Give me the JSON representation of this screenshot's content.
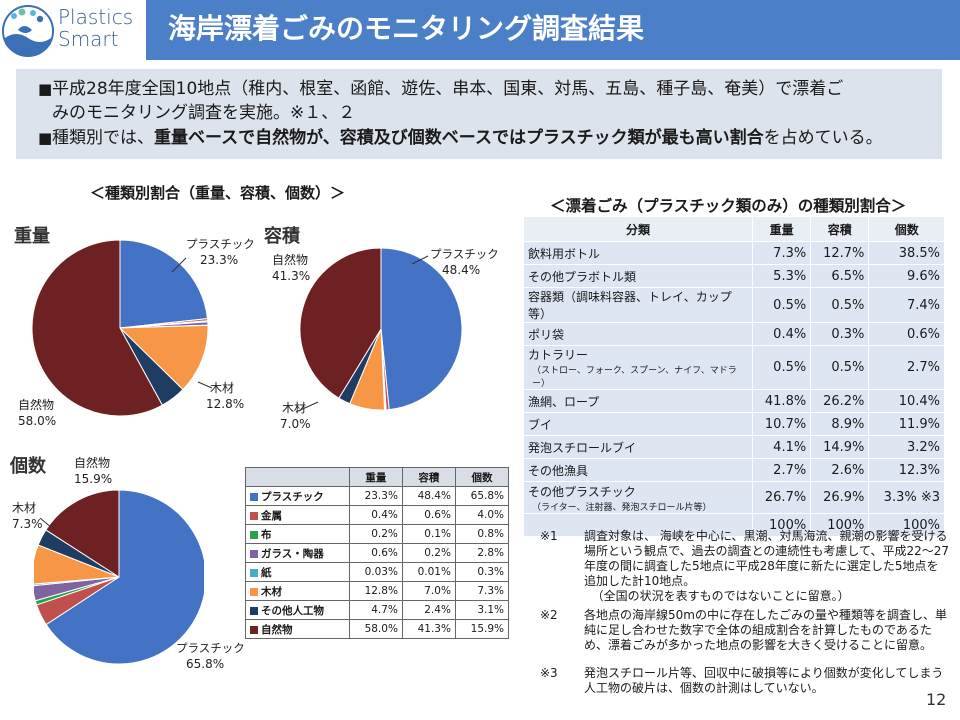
{
  "header": {
    "logo_line1": "Plastics",
    "logo_line2": "Smart",
    "title": "海岸漂着ごみのモニタリング調査結果"
  },
  "summary": {
    "line1": "平成28年度全国10地点（稚内、根室、函館、遊佐、串本、国東、対馬、五島、種子島、奄美）で漂着ご",
    "line1b": "みのモニタリング調査を実施。※１、２",
    "line2_a": "種類別では、",
    "line2_b": "重量ベースで自然物が、容積及び個数ベースではプラスチック類が最も高い割合",
    "line2_c": "を占めている。",
    "bullet": "■"
  },
  "left_section": {
    "heading": "＜種類別割合（重量、容積、個数）＞",
    "weight_label": "重量",
    "volume_label": "容積",
    "count_label": "個数"
  },
  "right_section": {
    "heading": "＜漂着ごみ（プラスチック類のみ）の種類別割合＞"
  },
  "colors": {
    "plastic": "#4472c4",
    "metal": "#c0504d",
    "cloth": "#2aa14d",
    "glass": "#8064a2",
    "paper": "#4bacc6",
    "wood": "#f79646",
    "other_artificial": "#1f3d62",
    "natural": "#6e2122"
  },
  "chart_data": [
    {
      "type": "pie",
      "title": "重量",
      "labels": [
        "プラスチック",
        "金属",
        "布",
        "ガラス・陶器",
        "紙",
        "木材",
        "その他人工物",
        "自然物"
      ],
      "values": [
        23.3,
        0.4,
        0.2,
        0.6,
        0.03,
        12.8,
        4.7,
        58.0
      ],
      "shown_labels": [
        {
          "name": "プラスチック",
          "value": "23.3%"
        },
        {
          "name": "木材",
          "value": "12.8%"
        },
        {
          "name": "自然物",
          "value": "58.0%"
        }
      ]
    },
    {
      "type": "pie",
      "title": "容積",
      "labels": [
        "プラスチック",
        "金属",
        "布",
        "ガラス・陶器",
        "紙",
        "木材",
        "その他人工物",
        "自然物"
      ],
      "values": [
        48.4,
        0.6,
        0.1,
        0.2,
        0.01,
        7.0,
        2.4,
        41.3
      ],
      "shown_labels": [
        {
          "name": "プラスチック",
          "value": "48.4%"
        },
        {
          "name": "木材",
          "value": "7.0%"
        },
        {
          "name": "自然物",
          "value": "41.3%"
        }
      ]
    },
    {
      "type": "pie",
      "title": "個数",
      "labels": [
        "プラスチック",
        "金属",
        "布",
        "ガラス・陶器",
        "紙",
        "木材",
        "その他人工物",
        "自然物"
      ],
      "values": [
        65.8,
        4.0,
        0.8,
        2.8,
        0.3,
        7.3,
        3.1,
        15.9
      ],
      "shown_labels": [
        {
          "name": "プラスチック",
          "value": "65.8%"
        },
        {
          "name": "木材",
          "value": "7.3%"
        },
        {
          "name": "自然物",
          "value": "15.9%"
        }
      ]
    },
    {
      "type": "table",
      "title": "種類別割合",
      "columns": [
        "",
        "重量",
        "容積",
        "個数"
      ],
      "rows": [
        {
          "name": "プラスチック",
          "color": "#4472c4",
          "values": [
            "23.3%",
            "48.4%",
            "65.8%"
          ]
        },
        {
          "name": "金属",
          "color": "#c0504d",
          "values": [
            "0.4%",
            "0.6%",
            "4.0%"
          ]
        },
        {
          "name": "布",
          "color": "#2aa14d",
          "values": [
            "0.2%",
            "0.1%",
            "0.8%"
          ]
        },
        {
          "name": "ガラス・陶器",
          "color": "#8064a2",
          "values": [
            "0.6%",
            "0.2%",
            "2.8%"
          ]
        },
        {
          "name": "紙",
          "color": "#4bacc6",
          "values": [
            "0.03%",
            "0.01%",
            "0.3%"
          ]
        },
        {
          "name": "木材",
          "color": "#f79646",
          "values": [
            "12.8%",
            "7.0%",
            "7.3%"
          ]
        },
        {
          "name": "その他人工物",
          "color": "#1f3d62",
          "values": [
            "4.7%",
            "2.4%",
            "3.1%"
          ]
        },
        {
          "name": "自然物",
          "color": "#6e2122",
          "values": [
            "58.0%",
            "41.3%",
            "15.9%"
          ]
        }
      ]
    },
    {
      "type": "table",
      "title": "＜漂着ごみ（プラスチック類のみ）の種類別割合＞",
      "columns": [
        "分類",
        "重量",
        "容積",
        "個数"
      ],
      "rows": [
        {
          "name": "飲料用ボトル",
          "sub": "",
          "values": [
            "7.3%",
            "12.7%",
            "38.5%"
          ]
        },
        {
          "name": "その他プラボトル類",
          "sub": "",
          "values": [
            "5.3%",
            "6.5%",
            "9.6%"
          ]
        },
        {
          "name": "容器類（調味料容器、トレイ、カップ等）",
          "sub": "",
          "values": [
            "0.5%",
            "0.5%",
            "7.4%"
          ]
        },
        {
          "name": "ポリ袋",
          "sub": "",
          "values": [
            "0.4%",
            "0.3%",
            "0.6%"
          ]
        },
        {
          "name": "カトラリー",
          "sub": "（ストロー、フォーク、スプーン、ナイフ、マドラー）",
          "values": [
            "0.5%",
            "0.5%",
            "2.7%"
          ]
        },
        {
          "name": "漁網、ロープ",
          "sub": "",
          "values": [
            "41.8%",
            "26.2%",
            "10.4%"
          ]
        },
        {
          "name": "ブイ",
          "sub": "",
          "values": [
            "10.7%",
            "8.9%",
            "11.9%"
          ]
        },
        {
          "name": "発泡スチロールブイ",
          "sub": "",
          "values": [
            "4.1%",
            "14.9%",
            "3.2%"
          ]
        },
        {
          "name": "その他漁具",
          "sub": "",
          "values": [
            "2.7%",
            "2.6%",
            "12.3%"
          ]
        },
        {
          "name": "その他プラスチック",
          "sub": "（ライター、注射器、発泡スチロール片等）",
          "values": [
            "26.7%",
            "26.9%",
            "3.3% ※3"
          ]
        },
        {
          "name": "",
          "sub": "",
          "values": [
            "100%",
            "100%",
            "100%"
          ]
        }
      ]
    }
  ],
  "notes": [
    {
      "mark": "※1",
      "text": "調査対象は、 海峡を中心に、黒潮、対馬海流、親潮の影響を受ける場所という観点で、過去の調査との連続性も考慮して、平成22～27年度の間に調査した5地点に平成28年度に新たに選定した5地点を追加した計10地点。",
      "sub": "（全国の状況を表すものではないことに留意。）"
    },
    {
      "mark": "※2",
      "text": "各地点の海岸線50mの中に存在したごみの量や種類等を調査し、単純に足し合わせた数字で全体の組成割合を計算したものであるため、漂着ごみが多かった地点の影響を大きく受けることに留意。",
      "sub": ""
    },
    {
      "mark": "※3",
      "text": "発泡スチロール片等、回収中に破損等により個数が変化してしまう人工物の破片は、個数の計測はしていない。",
      "sub": ""
    }
  ],
  "page_number": "12"
}
